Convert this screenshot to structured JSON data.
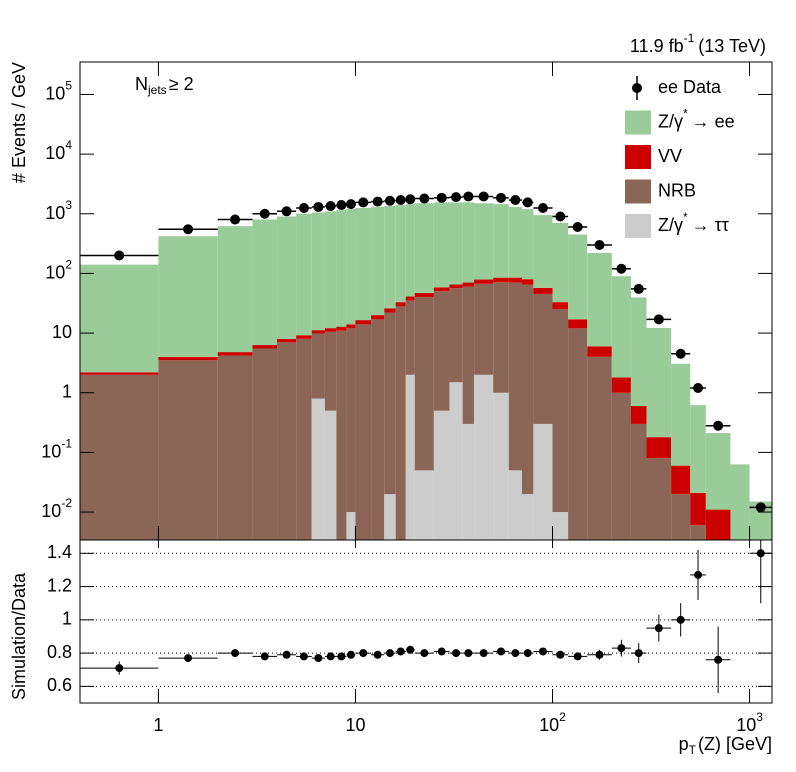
{
  "chart_data": [
    {
      "type": "histogram",
      "lumi": "11.9 fb",
      "lumi_superscript": "-1",
      "lumi_tail": "(13 TeV)",
      "annotation": "N",
      "annotation_subscript": "jets",
      "annotation_tail": "≥ 2",
      "ylabel": "# Events / GeV",
      "log_y": true,
      "ylim": [
        0.0034,
        350000
      ],
      "yticks": [
        {
          "value": 0.01,
          "label": "10",
          "sup": "-2"
        },
        {
          "value": 0.1,
          "label": "10",
          "sup": "-1"
        },
        1,
        10,
        {
          "value": 100,
          "label": "10",
          "sup": "2"
        },
        {
          "value": 1000,
          "label": "10",
          "sup": "3"
        },
        {
          "value": 10000,
          "label": "10",
          "sup": "4"
        },
        {
          "value": 100000,
          "label": "10",
          "sup": "5"
        }
      ],
      "bins": [
        0.4,
        1,
        2,
        3,
        4,
        5,
        6,
        7,
        8,
        9,
        10,
        12,
        14,
        16,
        18,
        20,
        25,
        30,
        35,
        40,
        50,
        60,
        70,
        80,
        100,
        120,
        150,
        200,
        250,
        300,
        400,
        500,
        600,
        800,
        1000,
        1300
      ],
      "data": {
        "name": "ee Data",
        "color": "#000000",
        "values": [
          200,
          550,
          800,
          1000,
          1100,
          1250,
          1300,
          1350,
          1400,
          1450,
          1550,
          1600,
          1650,
          1700,
          1750,
          1800,
          1850,
          1900,
          1950,
          1950,
          1850,
          1700,
          1550,
          1250,
          900,
          600,
          300,
          120,
          55,
          17,
          4.5,
          1.2,
          0.28,
          null,
          0.012
        ]
      },
      "series": [
        {
          "name": "Z/γ",
          "name_superscript": "*",
          "name_tail": "→ ee",
          "color": "#99cc99",
          "values": [
            138,
            416,
            615,
            794,
            892,
            991,
            1040,
            1088,
            1137,
            1186,
            1234,
            1280,
            1324,
            1367,
            1409,
            1453,
            1491,
            1484,
            1480,
            1421,
            1365,
            1215,
            1120,
            893,
            667,
            433,
            214,
            88,
            39,
            12,
            3,
            0.6,
            0.2,
            0.06,
            0.015
          ]
        },
        {
          "name": "VV",
          "color": "#cc0000",
          "values": [
            0.2,
            0.5,
            0.6,
            0.8,
            1,
            1.2,
            1.4,
            1.6,
            1.8,
            2,
            2.5,
            3,
            4,
            5,
            6,
            7,
            8,
            9,
            10,
            12,
            14,
            15,
            15,
            12,
            8,
            5,
            2,
            0.8,
            0.3,
            0.1,
            0.04,
            0.015,
            0.008,
            0.003,
            0
          ]
        },
        {
          "name": "NRB",
          "color": "#8b6656",
          "values": [
            2.0,
            3.5,
            4.2,
            5.5,
            7,
            8,
            9,
            10,
            11,
            12,
            14,
            17,
            22,
            28,
            33,
            40,
            50,
            55,
            60,
            65,
            70,
            70,
            65,
            45,
            25,
            12,
            4,
            1,
            0.3,
            0.08,
            0.02,
            0.006,
            0.003,
            0,
            0
          ]
        },
        {
          "name": "Z/γ",
          "name_superscript": "*",
          "name_tail": "→ ττ",
          "color": "#cccccc",
          "values": [
            0,
            0,
            0,
            0,
            0,
            0,
            0.8,
            0.5,
            0,
            0.01,
            0,
            0,
            0.02,
            0,
            2,
            0.05,
            0.5,
            1.5,
            0.3,
            2,
            1,
            0.05,
            0.02,
            0.3,
            0.01,
            0,
            0,
            0,
            0,
            0,
            0,
            0,
            0,
            0,
            0
          ]
        }
      ]
    },
    {
      "type": "scatter",
      "ylabel": "Simulation/Data",
      "xlabel": "p",
      "xlabel_subscript": "T",
      "xlabel_tail": "(Z) [GeV]",
      "log_x": true,
      "xlim": [
        0.4,
        1300
      ],
      "xticks": [
        1,
        10,
        {
          "value": 100,
          "label": "10",
          "sup": "2"
        },
        {
          "value": 1000,
          "label": "10",
          "sup": "3"
        }
      ],
      "ylim": [
        0.5,
        1.48
      ],
      "yticks": [
        0.6,
        0.8,
        1,
        1.2,
        1.4
      ],
      "grid": true,
      "color": "#000000",
      "values": [
        0.71,
        0.77,
        0.8,
        0.78,
        0.79,
        0.78,
        0.77,
        0.78,
        0.78,
        0.79,
        0.8,
        0.79,
        0.8,
        0.81,
        0.82,
        0.8,
        0.81,
        0.8,
        0.8,
        0.8,
        0.81,
        0.8,
        0.8,
        0.81,
        0.79,
        0.78,
        0.79,
        0.83,
        0.8,
        0.95,
        1.0,
        1.27,
        0.76,
        null,
        1.4
      ],
      "errors": [
        0.04,
        0.02,
        0.02,
        0.02,
        0.02,
        0.02,
        0.02,
        0.02,
        0.02,
        0.02,
        0.02,
        0.02,
        0.02,
        0.02,
        0.02,
        0.01,
        0.01,
        0.01,
        0.01,
        0.01,
        0.01,
        0.01,
        0.01,
        0.01,
        0.02,
        0.02,
        0.03,
        0.05,
        0.06,
        0.08,
        0.1,
        0.15,
        0.2,
        null,
        0.3
      ]
    }
  ]
}
